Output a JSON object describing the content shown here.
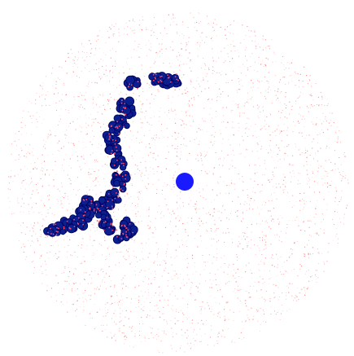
{
  "scene": {
    "background_color": "#ffffff",
    "sample_dot_color": "#ff3b3b",
    "cluster_fill_color": "#0b1f8f",
    "cluster_outline_color": "#000060",
    "cluster_inner_dot_color": "#ff4a6a",
    "center_marker_color": "#1a1aff"
  }
}
